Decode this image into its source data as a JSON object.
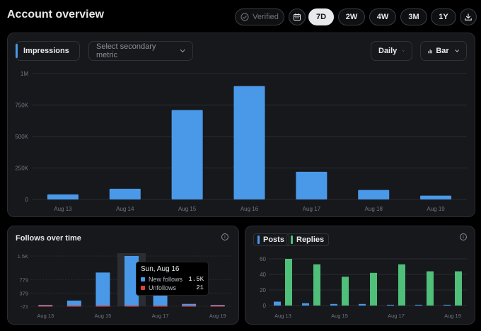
{
  "header": {
    "title": "Account overview"
  },
  "controls": {
    "verified_label": "Verified",
    "ranges": [
      "7D",
      "2W",
      "4W",
      "3M",
      "1Y"
    ],
    "active_range": "7D"
  },
  "main_chart": {
    "primary_metric": "Impressions",
    "secondary_placeholder": "Select secondary metric",
    "granularity": "Daily",
    "chart_type_label": "Bar"
  },
  "follows_panel": {
    "title": "Follows over time",
    "tooltip": {
      "date": "Sun, Aug 16",
      "rows": [
        {
          "label": "New follows",
          "value": "1.5K"
        },
        {
          "label": "Unfollows",
          "value": "21"
        }
      ]
    }
  },
  "posts_panel": {
    "legend": [
      "Posts",
      "Replies"
    ]
  },
  "colors": {
    "blue": "#4a99e9",
    "green": "#4fbf7a",
    "red": "#e0403c",
    "panel": "#16181c"
  },
  "chart_data": [
    {
      "type": "bar",
      "categories": [
        "Aug 13",
        "Aug 14",
        "Aug 15",
        "Aug 16",
        "Aug 17",
        "Aug 18",
        "Aug 19"
      ],
      "series": [
        {
          "name": "Impressions",
          "values": [
            40000,
            85000,
            710000,
            900000,
            220000,
            75000,
            30000
          ]
        }
      ],
      "ylim": [
        0,
        1000000
      ],
      "yticks": [
        {
          "value": 0,
          "label": "0"
        },
        {
          "value": 250000,
          "label": "250K"
        },
        {
          "value": 500000,
          "label": "500K"
        },
        {
          "value": 750000,
          "label": "750K"
        },
        {
          "value": 1000000,
          "label": "1M"
        }
      ],
      "grid": true
    },
    {
      "type": "bar",
      "title": "Follows over time",
      "categories": [
        "Aug 13",
        "Aug 14",
        "Aug 15",
        "Aug 16",
        "Aug 17",
        "Aug 18",
        "Aug 19"
      ],
      "xtick_labels": [
        "Aug 13",
        "",
        "Aug 15",
        "",
        "Aug 17",
        "",
        "Aug 19"
      ],
      "series": [
        {
          "name": "New follows",
          "values": [
            20,
            150,
            1000,
            1500,
            380,
            50,
            20
          ]
        },
        {
          "name": "Unfollows",
          "values": [
            -21,
            -21,
            -21,
            -21,
            -21,
            -21,
            -21
          ]
        }
      ],
      "ylim": [
        -21,
        1500
      ],
      "yticks": [
        {
          "value": -21,
          "label": "-21"
        },
        {
          "value": 379,
          "label": "379"
        },
        {
          "value": 779,
          "label": "779"
        },
        {
          "value": 1500,
          "label": "1.5K"
        }
      ],
      "highlight_index": 3,
      "grid": true
    },
    {
      "type": "bar",
      "categories": [
        "Aug 13",
        "Aug 14",
        "Aug 15",
        "Aug 16",
        "Aug 17",
        "Aug 18",
        "Aug 19"
      ],
      "xtick_labels": [
        "Aug 13",
        "",
        "Aug 15",
        "",
        "Aug 17",
        "",
        "Aug 19"
      ],
      "series": [
        {
          "name": "Posts",
          "values": [
            5,
            3,
            2,
            2,
            1,
            1,
            1
          ]
        },
        {
          "name": "Replies",
          "values": [
            60,
            53,
            37,
            42,
            53,
            44,
            44
          ]
        }
      ],
      "ylim": [
        0,
        60
      ],
      "yticks": [
        {
          "value": 0,
          "label": "0"
        },
        {
          "value": 20,
          "label": "20"
        },
        {
          "value": 40,
          "label": "40"
        },
        {
          "value": 60,
          "label": "60"
        }
      ],
      "grid": true
    }
  ]
}
